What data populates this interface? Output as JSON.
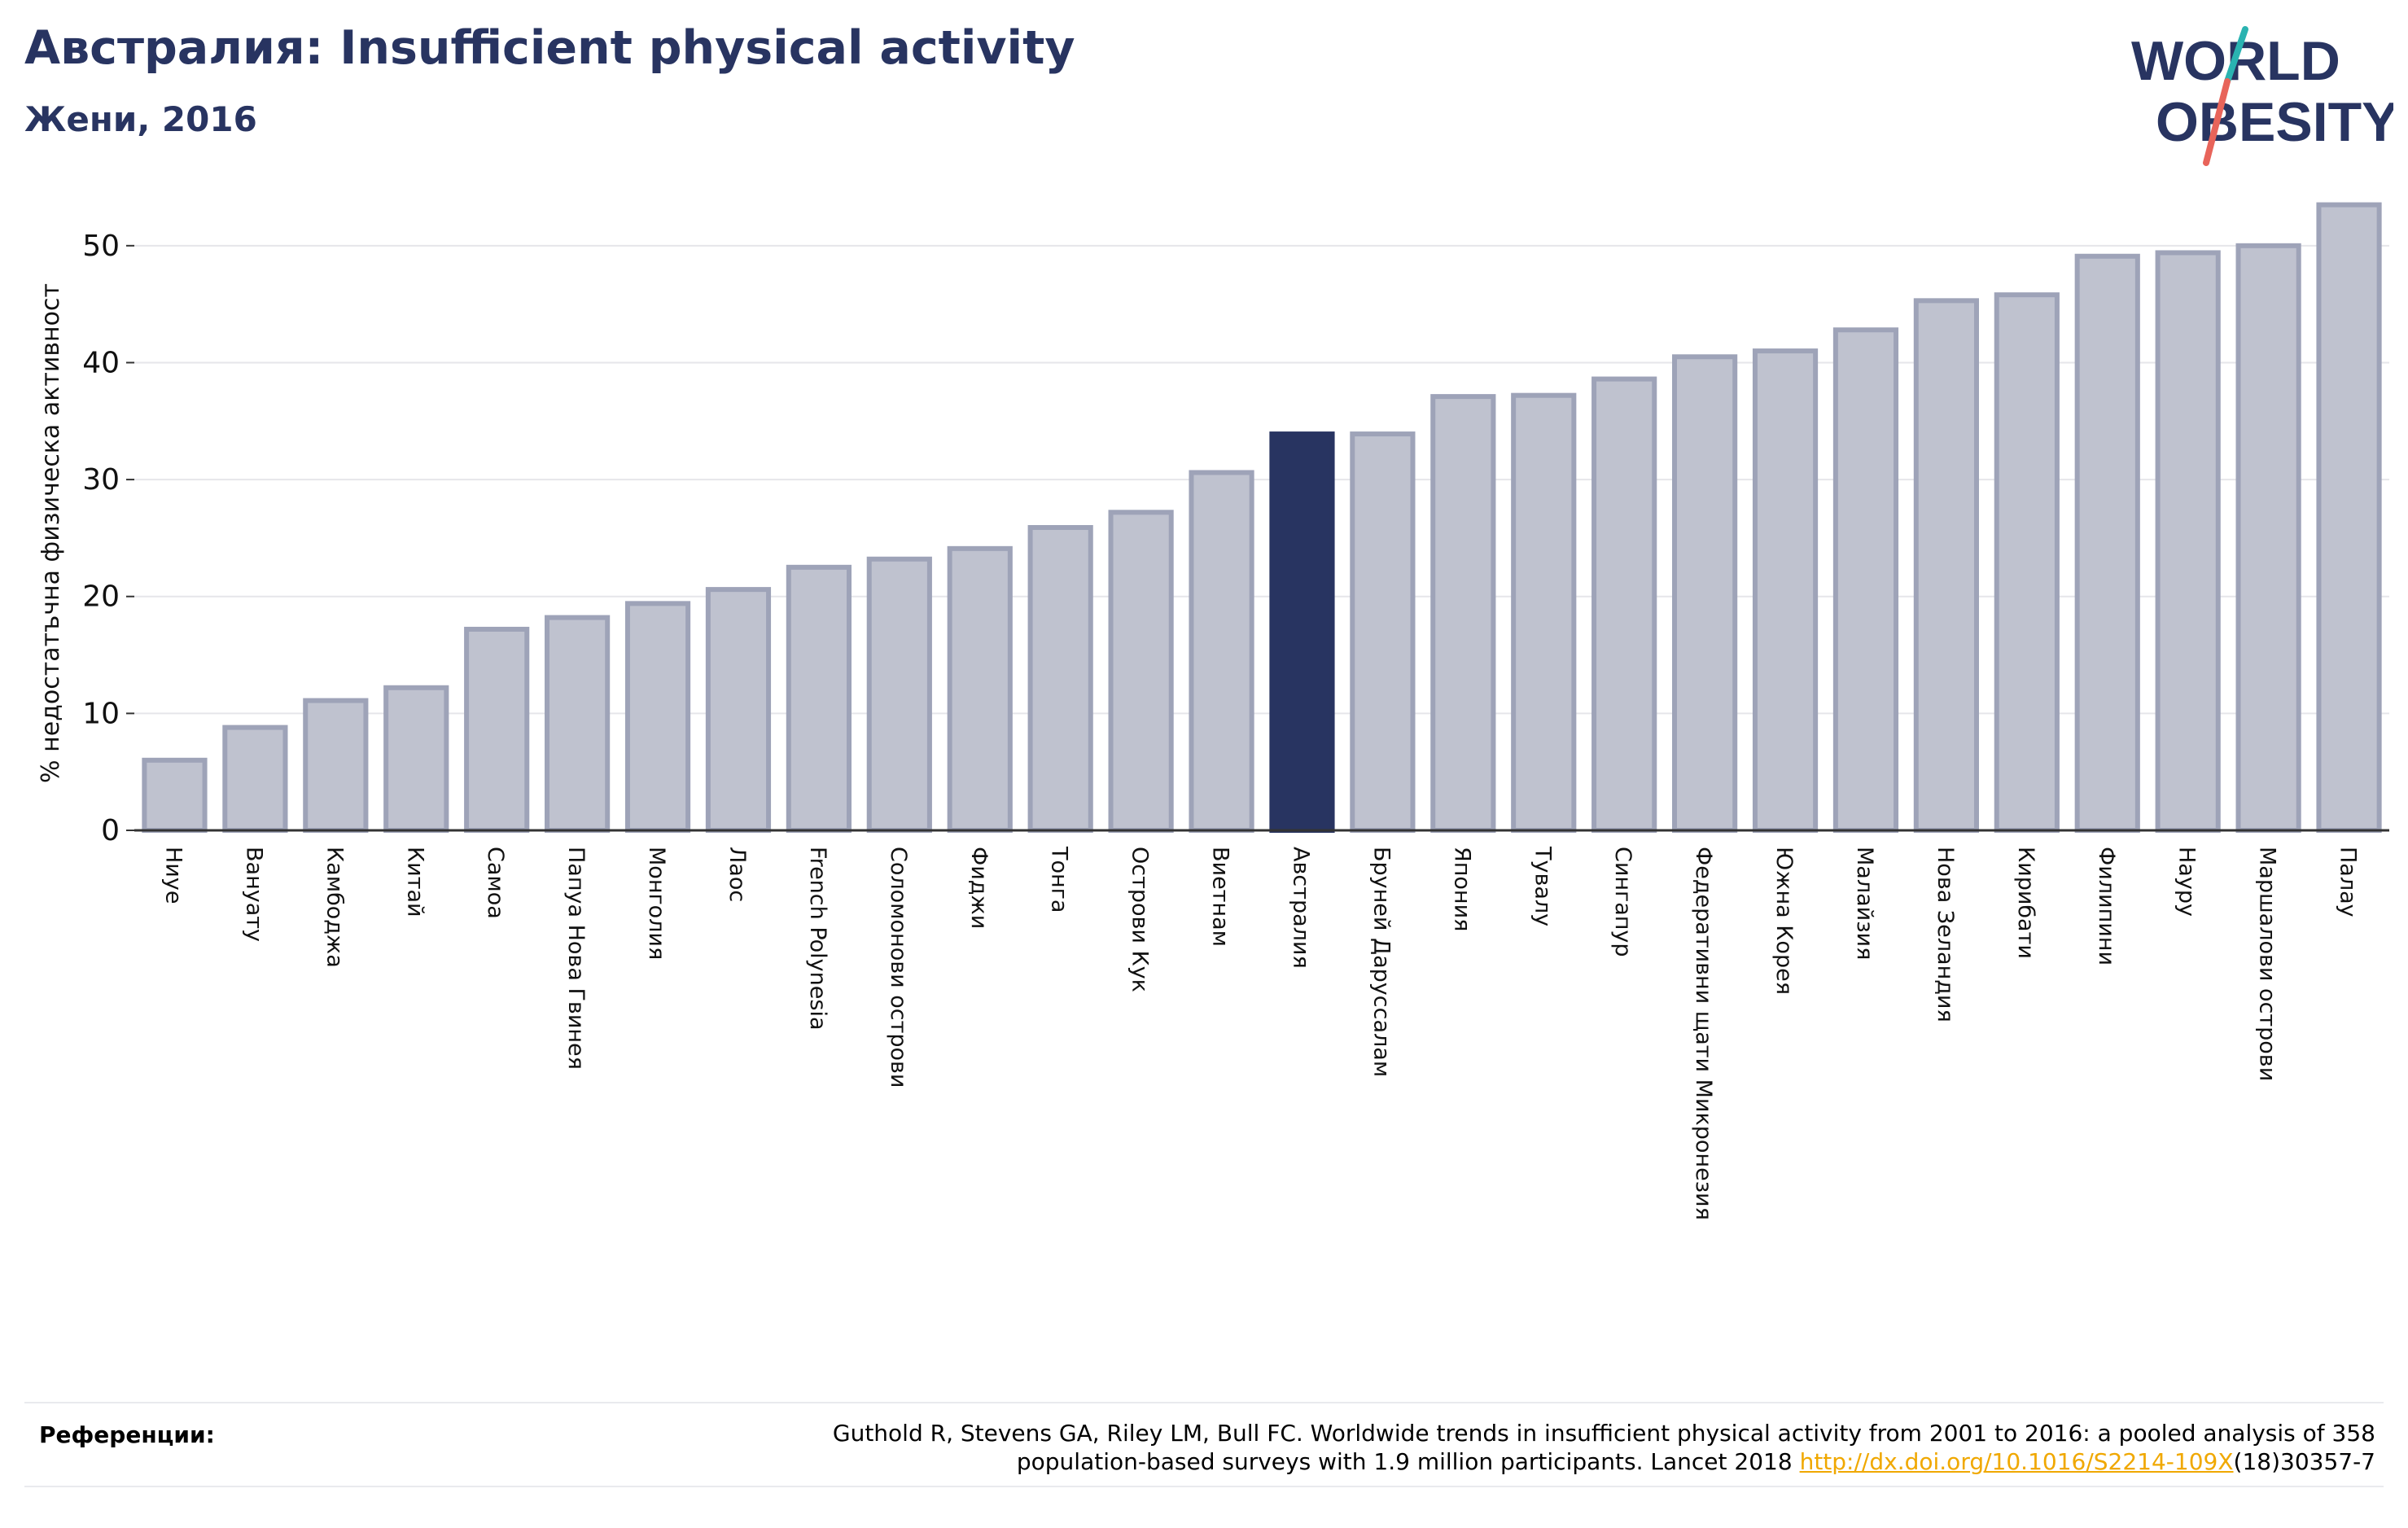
{
  "header": {
    "title": "Австралия: Insufficient physical activity",
    "subtitle": "Жени, 2016"
  },
  "logo": {
    "line1": "WORLD",
    "line2": "OBESITY",
    "text_color": "#283461",
    "slash_top_color": "#2ab3b1",
    "slash_bottom_color": "#e8645a"
  },
  "chart_data": {
    "type": "bar",
    "title": "Австралия: Insufficient physical activity",
    "subtitle": "Жени, 2016",
    "xlabel": "",
    "ylabel": "% недостатъчна физическа активност",
    "ylim": [
      0,
      55
    ],
    "yticks": [
      0,
      10,
      20,
      30,
      40,
      50
    ],
    "grid": true,
    "highlight": "Австралия",
    "colors": {
      "bar": "#bfc2cf",
      "bar_edge": "#9ea3b8",
      "highlight": "#283461"
    },
    "categories": [
      "Ниуе",
      "Вануату",
      "Камбоджа",
      "Китай",
      "Самоа",
      "Папуа Нова Гвинея",
      "Монголия",
      "Лаос",
      "French Polynesia",
      "Соломонови острови",
      "Фиджи",
      "Тонга",
      "Острови Кук",
      "Виетнам",
      "Австралия",
      "Бруней Даруссалам",
      "Япония",
      "Тувалу",
      "Сингапур",
      "Федеративни щати Микронезия",
      "Южна Корея",
      "Малайзия",
      "Нова Зеландия",
      "Кирибати",
      "Филипини",
      "Науру",
      "Маршалови острови",
      "Палау"
    ],
    "values": [
      6.0,
      8.8,
      11.1,
      12.2,
      17.2,
      18.2,
      19.4,
      20.6,
      22.5,
      23.2,
      24.1,
      25.9,
      27.2,
      30.6,
      33.9,
      33.9,
      37.1,
      37.2,
      38.6,
      40.5,
      41.0,
      42.8,
      45.3,
      45.8,
      49.1,
      49.4,
      50.0,
      53.5
    ]
  },
  "references": {
    "label": "Референции:",
    "line1": "Guthold R, Stevens GA, Riley LM, Bull FC. Worldwide trends in insufficient physical activity from 2001 to 2016: a pooled analysis of 358",
    "line2_prefix": "population-based surveys with 1.9 million participants. Lancet 2018 ",
    "link": "http://dx.doi.org/10.1016/S2214-109X",
    "line2_suffix": "(18)30357-7"
  }
}
